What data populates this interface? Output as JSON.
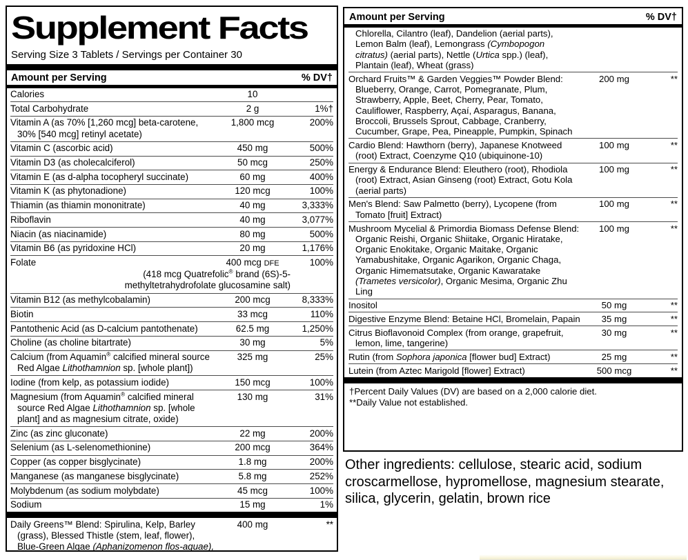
{
  "columns": {
    "amount_label": "Amount per Serving",
    "dv_label": "% DV†"
  },
  "left_panel": {
    "title": "Supplement Facts",
    "serving_line": "Serving Size 3 Tablets / Servings per Container 30",
    "rows": [
      {
        "name": "Calories",
        "amount": "10",
        "dv": ""
      },
      {
        "name": "Total Carbohydrate",
        "amount": "2 g",
        "dv": "1%†"
      },
      {
        "name": "Vitamin A (as 70% [1,260 mcg] beta-carotene, 30% [540 mcg] retinyl acetate)",
        "amount": "1,800 mcg",
        "dv": "200%"
      },
      {
        "name": "Vitamin C (ascorbic acid)",
        "amount": "450 mg",
        "dv": "500%"
      },
      {
        "name": "Vitamin D3 (as cholecalciferol)",
        "amount": "50 mcg",
        "dv": "250%"
      },
      {
        "name": "Vitamin E (as d-alpha tocopheryl succinate)",
        "amount": "60 mg",
        "dv": "400%"
      },
      {
        "name": "Vitamin K (as phytonadione)",
        "amount": "120 mcg",
        "dv": "100%"
      },
      {
        "name": "Thiamin (as thiamin mononitrate)",
        "amount": "40 mg",
        "dv": "3,333%"
      },
      {
        "name": "Riboflavin",
        "amount": "40 mg",
        "dv": "3,077%"
      },
      {
        "name": "Niacin (as niacinamide)",
        "amount": "80 mg",
        "dv": "500%"
      },
      {
        "name": "Vitamin B6 (as pyridoxine HCl)",
        "amount": "20 mg",
        "dv": "1,176%"
      },
      {
        "name": "Folate",
        "amount": "400 mcg ~DFE~",
        "dv": "100%",
        "subnote": "(418 mcg Quatrefolic^®^ brand (6S)-5-methyltetrahydrofolate glucosamine salt)"
      },
      {
        "name": "Vitamin B12 (as methylcobalamin)",
        "amount": "200 mcg",
        "dv": "8,333%"
      },
      {
        "name": "Biotin",
        "amount": "33 mcg",
        "dv": "110%"
      },
      {
        "name": "Pantothenic Acid (as D-calcium pantothenate)",
        "amount": "62.5 mg",
        "dv": "1,250%"
      },
      {
        "name": "Choline (as choline bitartrate)",
        "amount": "30 mg",
        "dv": "5%"
      },
      {
        "name": "Calcium (from Aquamin^®^ calcified mineral source Red Algae *Lithothamnion* sp. [whole plant])",
        "amount": "325 mg",
        "dv": "25%"
      },
      {
        "name": "Iodine (from kelp, as potassium iodide)",
        "amount": "150 mcg",
        "dv": "100%"
      },
      {
        "name": "Magnesium (from Aquamin^®^ calcified mineral source Red Algae *Lithothamnion* sp. [whole plant] and as magnesium citrate, oxide)",
        "amount": "130 mg",
        "dv": "31%"
      },
      {
        "name": "Zinc (as zinc gluconate)",
        "amount": "22 mg",
        "dv": "200%"
      },
      {
        "name": "Selenium (as L-selenomethionine)",
        "amount": "200 mcg",
        "dv": "364%"
      },
      {
        "name": "Copper (as copper bisglycinate)",
        "amount": "1.8 mg",
        "dv": "200%"
      },
      {
        "name": "Manganese (as manganese bisglycinate)",
        "amount": "5.8 mg",
        "dv": "252%"
      },
      {
        "name": "Molybdenum (as sodium molybdate)",
        "amount": "45 mcg",
        "dv": "100%"
      },
      {
        "name": "Sodium",
        "amount": "15 mg",
        "dv": "1%"
      }
    ],
    "blend_rows": [
      {
        "name": "Daily Greens™ Blend: Spirulina, Kelp, Barley (grass), Blessed Thistle (stem, leaf, flower), Blue-Green Algae *(Aphanizomenon flos-aquae),*",
        "amount": "400 mg",
        "dv": "**"
      }
    ]
  },
  "right_panel": {
    "rows": [
      {
        "cls": "narrow",
        "name": "Chlorella, Cilantro (leaf), Dandelion (aerial parts), Lemon Balm (leaf), Lemongrass *(Cymbopogon citratus)* (aerial parts), Nettle (*Urtica* spp.) (leaf), Plantain (leaf), Wheat (grass)",
        "amount": "",
        "dv": ""
      },
      {
        "name": "Orchard Fruits™ & Garden Veggies™ Powder Blend: Blueberry, Orange, Carrot, Pomegranate, Plum, Strawberry, Apple, Beet, Cherry, Pear, Tomato, Cauliflower, Raspberry, Açaí, Asparagus, Banana, Broccoli, Brussels Sprout, Cabbage, Cranberry, Cucumber, Grape, Pea, Pineapple, Pumpkin, Spinach",
        "amount": "200 mg",
        "dv": "**"
      },
      {
        "name": "Cardio Blend: Hawthorn (berry), Japanese Knotweed (root) Extract, Coenzyme Q10 (ubiquinone-10)",
        "amount": "100 mg",
        "dv": "**"
      },
      {
        "name": "Energy & Endurance Blend: Eleuthero (root), Rhodiola (root) Extract, Asian Ginseng (root) Extract, Gotu Kola (aerial parts)",
        "amount": "100 mg",
        "dv": "**"
      },
      {
        "name": "Men's Blend: Saw Palmetto (berry), Lycopene (from Tomato [fruit] Extract)",
        "amount": "100 mg",
        "dv": "**"
      },
      {
        "name": "Mushroom Mycelial & Primordia Biomass Defense Blend: Organic Reishi, Organic Shiitake, Organic Hiratake, Organic Enokitake, Organic Maitake, Organic Yamabushitake, Organic Agarikon, Organic Chaga, Organic Himematsutake, Organic Kawaratake *(Trametes versicolor)*, Organic Mesima, Organic Zhu Ling",
        "amount": "100 mg",
        "dv": "**"
      },
      {
        "name": "Inositol",
        "amount": "50 mg",
        "dv": "**"
      },
      {
        "name": "Digestive Enzyme Blend: Betaine HCl, Bromelain, Papain",
        "amount": "35 mg",
        "dv": "**"
      },
      {
        "name": "Citrus Bioflavonoid Complex (from orange, grapefruit, lemon, lime, tangerine)",
        "amount": "30 mg",
        "dv": "**"
      },
      {
        "name": "Rutin (from *Sophora japonica* [flower bud] Extract)",
        "amount": "25 mg",
        "dv": "**"
      },
      {
        "name": "Lutein (from Aztec Marigold [flower] Extract)",
        "amount": "500 mcg",
        "dv": "**"
      }
    ],
    "footnotes": [
      {
        "text": "†Percent Daily Values (DV) are based on a 2,000 calorie diet."
      },
      {
        "text": "**Daily Value not established."
      }
    ]
  },
  "other_ingredients": "Other ingredients: cellulose, stearic acid, sodium croscarmellose, hypromellose, magnesium stearate, silica, glycerin, gelatin, brown rice"
}
